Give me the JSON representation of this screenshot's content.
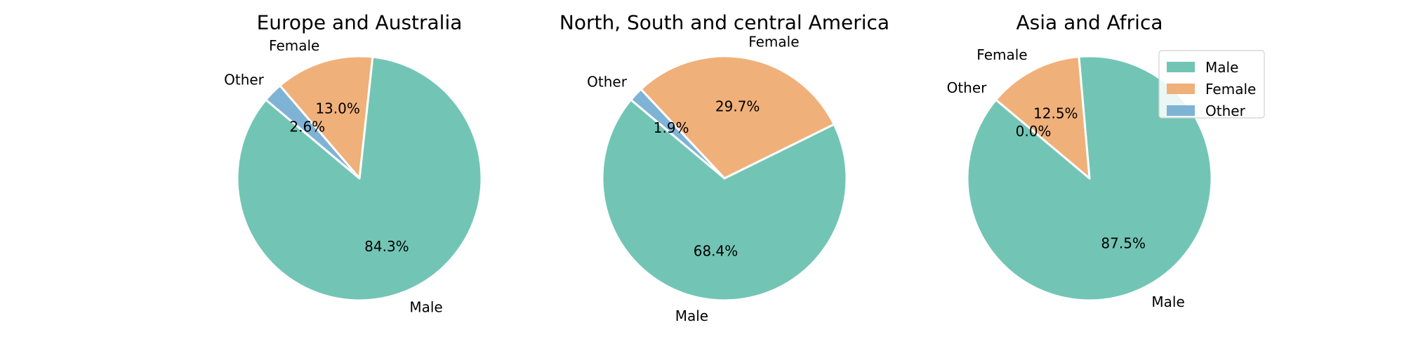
{
  "colors": {
    "male": "#72c5b5",
    "female": "#f0b07a",
    "other": "#7fb3d5"
  },
  "chart_data": [
    {
      "type": "pie",
      "title": "Europe and Australia",
      "labels": [
        "Male",
        "Female",
        "Other"
      ],
      "values": [
        84.3,
        13.0,
        2.6
      ],
      "pct_labels": [
        "84.3%",
        "13.0%",
        "2.6%"
      ],
      "start_angle_deg": 140,
      "legend": false
    },
    {
      "type": "pie",
      "title": "North, South and central America",
      "labels": [
        "Male",
        "Female",
        "Other"
      ],
      "values": [
        68.4,
        29.7,
        1.9
      ],
      "pct_labels": [
        "68.4%",
        "29.7%",
        "1.9%"
      ],
      "start_angle_deg": 140,
      "legend": false
    },
    {
      "type": "pie",
      "title": "Asia and Africa",
      "labels": [
        "Male",
        "Female",
        "Other"
      ],
      "values": [
        87.5,
        12.5,
        0.0
      ],
      "pct_labels": [
        "87.5%",
        "12.5%",
        "0.0%"
      ],
      "start_angle_deg": 140,
      "legend": true,
      "legend_position": "upper-right",
      "legend_entries": [
        "Male",
        "Female",
        "Other"
      ]
    }
  ]
}
